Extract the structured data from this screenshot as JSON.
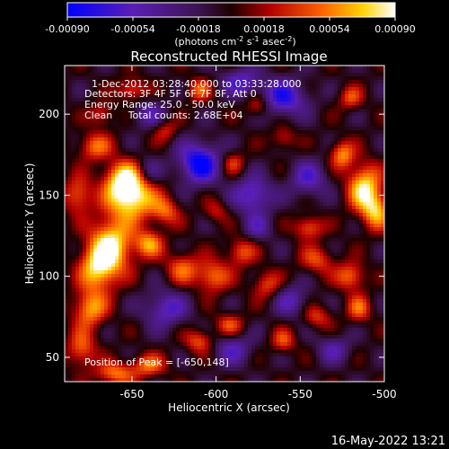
{
  "colorbar": {
    "ticks": [
      "-0.00090",
      "-0.00054",
      "-0.00018",
      "0.00018",
      "0.00054",
      "0.00090"
    ],
    "units_main": "(photons cm",
    "units_sup1": "-2",
    "units_mid1": " s",
    "units_sup2": "-1",
    "units_mid2": " asec",
    "units_sup3": "-2",
    "units_close": ")"
  },
  "chart_data": {
    "type": "heatmap",
    "title": "Reconstructed RHESSI Image",
    "xlabel": "Heliocentric X (arcsec)",
    "ylabel": "Heliocentric Y (arcsec)",
    "xlim": [
      -690,
      -500
    ],
    "ylim": [
      35,
      230
    ],
    "xticks": [
      -650,
      -600,
      -550,
      -500
    ],
    "yticks": [
      50,
      100,
      150,
      200
    ],
    "zlim": [
      -0.0009,
      0.0009
    ],
    "colormap": "RHESSI hot-blue (blue → purple → red → orange → yellow → white)",
    "peak": [
      -650,
      148
    ],
    "blobs": [
      [
        -650,
        148,
        10,
        9,
        1.0
      ],
      [
        -655,
        160,
        8,
        8,
        0.9
      ],
      [
        -662,
        120,
        9,
        12,
        0.95
      ],
      [
        -670,
        105,
        8,
        10,
        0.85
      ],
      [
        -675,
        80,
        7,
        8,
        0.75
      ],
      [
        -680,
        55,
        6,
        8,
        0.6
      ],
      [
        -640,
        120,
        6,
        6,
        0.7
      ],
      [
        -672,
        180,
        7,
        6,
        0.6
      ],
      [
        -682,
        150,
        6,
        8,
        0.6
      ],
      [
        -630,
        140,
        6,
        6,
        0.55
      ],
      [
        -620,
        105,
        7,
        7,
        0.55
      ],
      [
        -602,
        100,
        7,
        7,
        0.65
      ],
      [
        -585,
        115,
        6,
        6,
        0.55
      ],
      [
        -570,
        95,
        6,
        6,
        0.5
      ],
      [
        -545,
        130,
        6,
        5,
        0.6
      ],
      [
        -540,
        110,
        7,
        6,
        0.5
      ],
      [
        -525,
        175,
        5,
        6,
        0.7
      ],
      [
        -512,
        155,
        7,
        10,
        0.95
      ],
      [
        -505,
        140,
        6,
        8,
        0.75
      ],
      [
        -520,
        100,
        6,
        6,
        0.65
      ],
      [
        -515,
        80,
        5,
        6,
        0.55
      ],
      [
        -610,
        60,
        6,
        5,
        0.55
      ],
      [
        -592,
        70,
        6,
        5,
        0.5
      ],
      [
        -640,
        45,
        7,
        5,
        0.6
      ],
      [
        -660,
        40,
        8,
        5,
        0.65
      ],
      [
        -560,
        60,
        5,
        5,
        0.5
      ],
      [
        -540,
        75,
        6,
        5,
        0.45
      ],
      [
        -610,
        215,
        5,
        5,
        0.55
      ],
      [
        -575,
        205,
        5,
        5,
        0.5
      ],
      [
        -520,
        210,
        5,
        5,
        0.5
      ],
      [
        -650,
        215,
        6,
        5,
        0.55
      ],
      [
        -668,
        200,
        5,
        5,
        0.45
      ],
      [
        -590,
        170,
        5,
        5,
        0.45
      ],
      [
        -560,
        185,
        5,
        5,
        0.4
      ],
      [
        -630,
        190,
        5,
        5,
        0.4
      ],
      [
        -600,
        140,
        5,
        5,
        0.35
      ],
      [
        -610,
        170,
        -9,
        9,
        -0.95
      ],
      [
        -578,
        150,
        -8,
        8,
        -0.7
      ],
      [
        -630,
        80,
        -9,
        8,
        -0.6
      ],
      [
        -560,
        210,
        -10,
        8,
        -0.75
      ],
      [
        -585,
        220,
        -8,
        6,
        -0.6
      ],
      [
        -545,
        160,
        -8,
        8,
        -0.55
      ],
      [
        -590,
        55,
        -8,
        7,
        -0.5
      ],
      [
        -555,
        85,
        -7,
        7,
        -0.5
      ],
      [
        -640,
        200,
        -7,
        6,
        -0.45
      ],
      [
        -530,
        55,
        -7,
        6,
        -0.45
      ],
      [
        -575,
        130,
        -6,
        6,
        -0.4
      ],
      [
        -640,
        165,
        -5,
        6,
        -0.35
      ]
    ]
  },
  "annotations": {
    "time": "1-Dec-2012 03:28:40.000 to 03:33:28.000",
    "detectors": "Detectors: 3F 4F 5F 6F 7F 8F, Att 0",
    "energy": "Energy Range: 25.0 - 50.0 keV",
    "clean": "Clean     Total counts: 2.68E+04",
    "peak": "Position of Peak = [-650,148]"
  },
  "footer": {
    "date": "16-May-2022 13:21"
  }
}
